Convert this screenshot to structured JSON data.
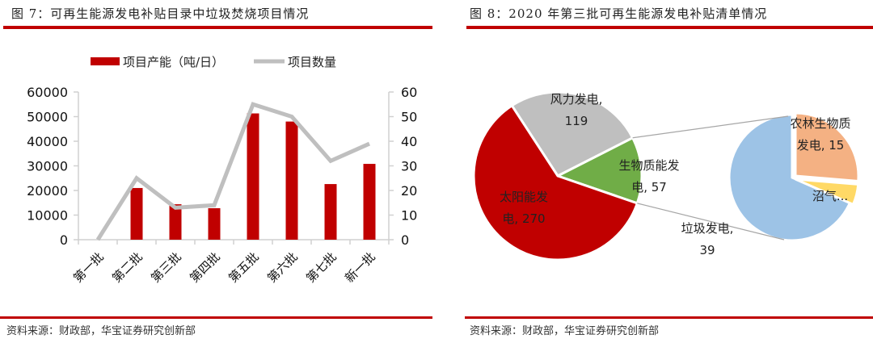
{
  "left": {
    "title": "图 7：可再生能源发电补贴目录中垃圾焚烧项目情况",
    "source": "资料来源：财政部，华宝证券研究创新部",
    "legend": {
      "bar_label": "项目产能（吨/日）",
      "line_label": "项目数量"
    }
  },
  "right": {
    "title": "图 8：2020 年第三批可再生能源发电补贴清单情况",
    "source": "资料来源：财政部，华宝证券研究创新部"
  },
  "colors": {
    "accent_red": "#c00000",
    "line_gray": "#bfbfbf",
    "pie_wind": "#bfbfbf",
    "pie_solar": "#c00000",
    "pie_biomass": "#70ad47",
    "sub_waste": "#9dc3e6",
    "sub_agri": "#f4b183",
    "sub_biogas": "#ffd966"
  },
  "chart_data": [
    {
      "type": "bar+line",
      "title": "可再生能源发电补贴目录中垃圾焚烧项目情况",
      "categories": [
        "第一批",
        "第二批",
        "第三批",
        "第四批",
        "第五批",
        "第六批",
        "第七批",
        "新一批"
      ],
      "series": [
        {
          "name": "项目产能（吨/日）",
          "type": "bar",
          "axis": "left",
          "values": [
            0,
            21000,
            14400,
            12800,
            51300,
            48000,
            22600,
            30800
          ]
        },
        {
          "name": "项目数量",
          "type": "line",
          "axis": "right",
          "values": [
            0,
            25,
            13,
            14,
            55,
            50,
            32,
            39
          ]
        }
      ],
      "y_left": {
        "min": 0,
        "max": 60000,
        "ticks": [
          "0",
          "10000",
          "20000",
          "30000",
          "40000",
          "50000",
          "60000"
        ]
      },
      "y_right": {
        "min": 0,
        "max": 60,
        "ticks": [
          "0",
          "10",
          "20",
          "30",
          "40",
          "50",
          "60"
        ]
      },
      "legend_position": "top",
      "grid": false
    },
    {
      "type": "pie-of-pie",
      "title": "2020 年第三批可再生能源发电补贴清单情况",
      "main": [
        {
          "label": "风力发电",
          "value": 119,
          "display": "风力发电,\n119"
        },
        {
          "label": "生物质能发电",
          "value": 57,
          "display": "生物质能发\n电, 57"
        },
        {
          "label": "太阳能发电",
          "value": 270,
          "display": "太阳能发\n电, 270"
        }
      ],
      "breakout_of": "生物质能发电",
      "sub": [
        {
          "label": "农林生物质发电",
          "value": 15,
          "display": "农林生物质\n发电, 15"
        },
        {
          "label": "沼气发电",
          "value": 3,
          "display": "沼气..."
        },
        {
          "label": "垃圾发电",
          "value": 39,
          "display": "垃圾发电,\n39"
        }
      ]
    }
  ]
}
